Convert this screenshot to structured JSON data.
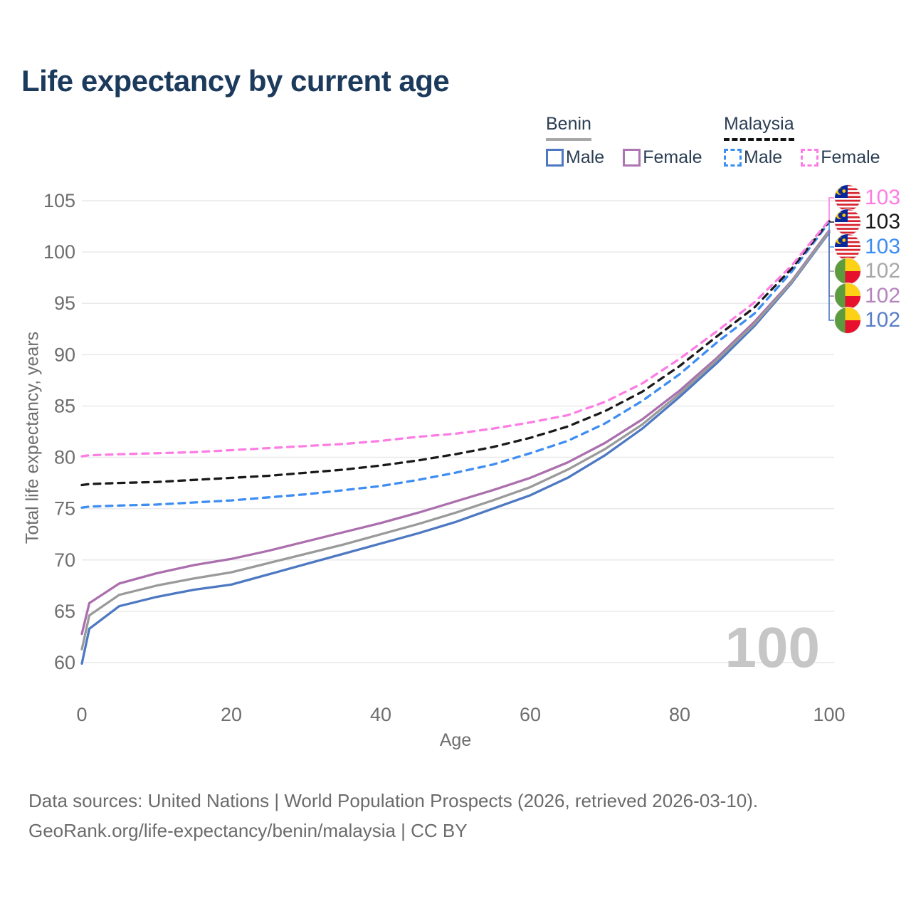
{
  "title": "Life expectancy by current age",
  "legend": {
    "groups": [
      {
        "label": "Benin",
        "style": "solid",
        "items": [
          {
            "label": "Male",
            "color": "#4d78c2"
          },
          {
            "label": "Female",
            "color": "#ad75b2"
          }
        ]
      },
      {
        "label": "Malaysia",
        "style": "dashed",
        "items": [
          {
            "label": "Male",
            "color": "#3d8df2"
          },
          {
            "label": "Female",
            "color": "#fc7de4"
          }
        ]
      }
    ]
  },
  "chart_data": {
    "type": "line",
    "title": "Life expectancy by current age",
    "xlabel": "Age",
    "ylabel": "Total life expectancy, years",
    "xlim": [
      0,
      100
    ],
    "ylim": [
      60,
      105
    ],
    "xticks": [
      0,
      20,
      40,
      60,
      80,
      100
    ],
    "yticks": [
      60,
      65,
      70,
      75,
      80,
      85,
      90,
      95,
      100,
      105
    ],
    "grid": true,
    "watermark": "100",
    "x": [
      0,
      1,
      5,
      10,
      15,
      20,
      25,
      30,
      35,
      40,
      45,
      50,
      55,
      60,
      65,
      70,
      75,
      80,
      85,
      90,
      95,
      100
    ],
    "series": [
      {
        "name": "Malaysia Female",
        "country": "Malaysia",
        "flag": "malaysia",
        "dash": true,
        "color": "#fc7de4",
        "label_color": "#fc7de4",
        "end_label": "103",
        "values": [
          80.1,
          80.2,
          80.3,
          80.4,
          80.5,
          80.7,
          80.9,
          81.1,
          81.3,
          81.6,
          82.0,
          82.3,
          82.8,
          83.4,
          84.1,
          85.4,
          87.2,
          89.6,
          92.3,
          95.1,
          98.7,
          103.1
        ]
      },
      {
        "name": "Malaysia Total",
        "country": "Malaysia",
        "flag": "malaysia",
        "dash": true,
        "color": "#1a1a1a",
        "label_color": "#1a1a1a",
        "end_label": "103",
        "values": [
          77.3,
          77.4,
          77.5,
          77.6,
          77.8,
          78.0,
          78.2,
          78.5,
          78.8,
          79.2,
          79.7,
          80.3,
          81.0,
          81.9,
          83.0,
          84.5,
          86.4,
          88.9,
          91.8,
          94.6,
          98.4,
          103.0
        ]
      },
      {
        "name": "Malaysia Male",
        "country": "Malaysia",
        "flag": "malaysia",
        "dash": true,
        "color": "#3d8df2",
        "label_color": "#3d8df2",
        "end_label": "103",
        "values": [
          75.1,
          75.2,
          75.3,
          75.4,
          75.6,
          75.8,
          76.1,
          76.4,
          76.8,
          77.2,
          77.8,
          78.5,
          79.3,
          80.4,
          81.6,
          83.3,
          85.5,
          88.1,
          91.2,
          94.0,
          98.1,
          102.9
        ]
      },
      {
        "name": "Benin Total",
        "country": "Benin",
        "flag": "benin",
        "dash": false,
        "color": "#9a9a9a",
        "label_color": "#a8a8a8",
        "end_label": "102",
        "values": [
          61.3,
          64.6,
          66.6,
          67.5,
          68.2,
          68.8,
          69.7,
          70.6,
          71.5,
          72.5,
          73.5,
          74.6,
          75.8,
          77.1,
          78.8,
          80.8,
          83.2,
          86.2,
          89.5,
          93.0,
          97.1,
          102.0
        ]
      },
      {
        "name": "Benin Female",
        "country": "Benin",
        "flag": "benin",
        "dash": false,
        "color": "#ab6fad",
        "label_color": "#b584bd",
        "end_label": "102",
        "values": [
          62.8,
          65.8,
          67.7,
          68.7,
          69.5,
          70.1,
          70.9,
          71.8,
          72.7,
          73.6,
          74.6,
          75.7,
          76.8,
          78.0,
          79.5,
          81.4,
          83.7,
          86.5,
          89.7,
          93.2,
          97.2,
          102.1
        ]
      },
      {
        "name": "Benin Male",
        "country": "Benin",
        "flag": "benin",
        "dash": false,
        "color": "#4d78c2",
        "label_color": "#5a7fc7",
        "end_label": "102",
        "values": [
          59.9,
          63.3,
          65.5,
          66.4,
          67.1,
          67.6,
          68.6,
          69.6,
          70.6,
          71.6,
          72.6,
          73.7,
          75.0,
          76.3,
          78.0,
          80.2,
          82.8,
          85.9,
          89.2,
          92.8,
          97.0,
          101.9
        ]
      }
    ]
  },
  "footer": {
    "line1": "Data sources: United Nations | World Population Prospects (2026, retrieved 2026-03-10).",
    "line2": "GeoRank.org/life-expectancy/benin/malaysia | CC BY"
  }
}
